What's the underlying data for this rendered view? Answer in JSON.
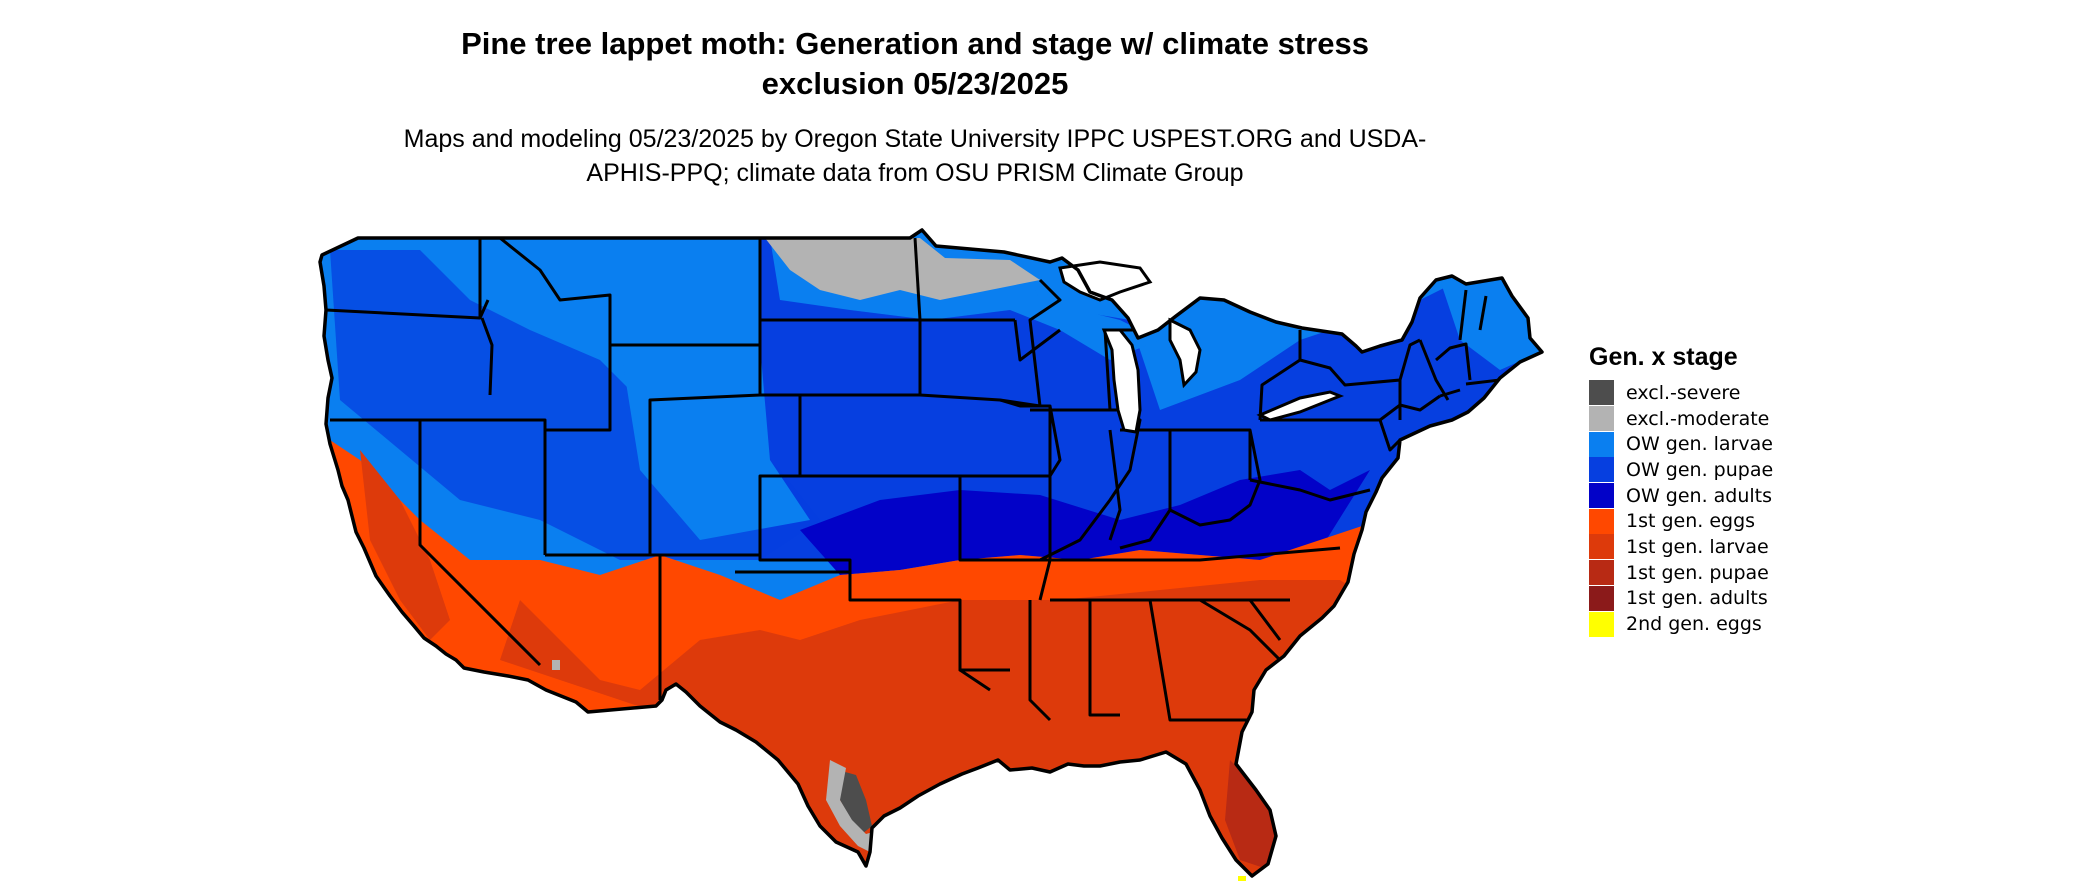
{
  "title": "Pine tree lappet moth: Generation and stage w/ climate stress exclusion 05/23/2025",
  "subtitle": "Maps and modeling 05/23/2025 by Oregon State University IPPC USPEST.ORG and USDA-APHIS-PPQ; climate data from OSU PRISM Climate Group",
  "legend": {
    "title": "Gen. x stage",
    "items": [
      {
        "label": "excl.-severe",
        "color": "#4d4d4d"
      },
      {
        "label": "excl.-moderate",
        "color": "#b3b3b3"
      },
      {
        "label": "OW gen. larvae",
        "color": "#0a7ff0"
      },
      {
        "label": "OW gen. pupae",
        "color": "#063fe0"
      },
      {
        "label": "OW gen. adults",
        "color": "#0202c8"
      },
      {
        "label": "1st gen. eggs",
        "color": "#ff4800"
      },
      {
        "label": "1st gen. larvae",
        "color": "#dd3a0b"
      },
      {
        "label": "1st gen. pupae",
        "color": "#b82a14"
      },
      {
        "label": "1st gen. adults",
        "color": "#8b1a1a"
      },
      {
        "label": "2nd gen. eggs",
        "color": "#ffff00"
      }
    ]
  }
}
